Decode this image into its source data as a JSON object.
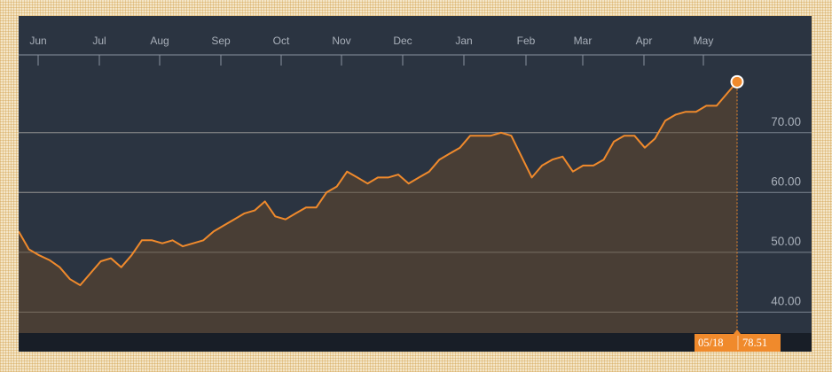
{
  "chart_data": {
    "type": "area",
    "title": "",
    "xlabel": "",
    "ylabel": "",
    "x_ticks": [
      "Jun",
      "Jul",
      "Aug",
      "Sep",
      "Oct",
      "Nov",
      "Dec",
      "Jan",
      "Feb",
      "Mar",
      "Apr",
      "May"
    ],
    "y_ticks": [
      "40.00",
      "50.00",
      "60.00",
      "70.00"
    ],
    "ylim": [
      36.5,
      83
    ],
    "grid": true,
    "series": [
      {
        "values": [
          53.5,
          50.5,
          49.5,
          48.7,
          47.5,
          45.5,
          44.5,
          46.5,
          48.5,
          49,
          47.5,
          49.5,
          52,
          52,
          51.5,
          52,
          51,
          51.5,
          52,
          53.5,
          54.5,
          55.5,
          56.5,
          57,
          58.5,
          56,
          55.5,
          56.5,
          57.5,
          57.5,
          60,
          61,
          63.5,
          62.5,
          61.5,
          62.5,
          62.5,
          63,
          61.5,
          62.5,
          63.5,
          65.5,
          66.5,
          67.5,
          69.5,
          69.5,
          69.5,
          70,
          69.5,
          66,
          62.5,
          64.5,
          65.5,
          66,
          63.5,
          64.5,
          64.5,
          65.5,
          68.5,
          69.5,
          69.5,
          67.5,
          69,
          72,
          73,
          73.5,
          73.5,
          74.5,
          74.5,
          76.5,
          78.51
        ],
        "color": "#f08a2c"
      }
    ],
    "last_point": {
      "date": "05/18",
      "value": "78.51"
    }
  },
  "colors": {
    "panel": "#2b3441",
    "grid": "#8a929e",
    "line": "#f08a2c",
    "area": "#4b3f35",
    "axis_strip": "#181e27",
    "flag": "#f08a2c"
  }
}
